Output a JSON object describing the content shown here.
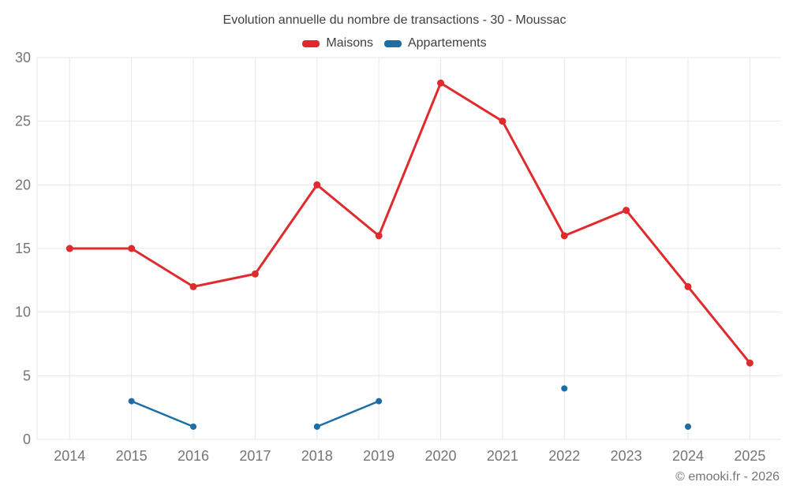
{
  "chart_data": {
    "type": "line",
    "title": "Evolution annuelle du nombre de transactions - 30 - Moussac",
    "categories": [
      "2014",
      "2015",
      "2016",
      "2017",
      "2018",
      "2019",
      "2020",
      "2021",
      "2022",
      "2023",
      "2024",
      "2025"
    ],
    "series": [
      {
        "name": "Maisons",
        "color": "#e02a2d",
        "values": [
          15,
          15,
          12,
          13,
          20,
          16,
          28,
          25,
          16,
          18,
          12,
          6
        ]
      },
      {
        "name": "Appartements",
        "color": "#1c6ea4",
        "values": [
          null,
          3,
          1,
          null,
          1,
          3,
          null,
          null,
          4,
          null,
          1,
          null
        ]
      }
    ],
    "xlabel": "",
    "ylabel": "",
    "ylim": [
      0,
      30
    ],
    "yticks": [
      0,
      5,
      10,
      15,
      20,
      25,
      30
    ],
    "grid": true,
    "legend_position": "top",
    "colors": {
      "grid": "#e7e7e7",
      "tick_text": "#757575",
      "title_text": "#3f3f3f"
    }
  },
  "footer": {
    "copyright": "© emooki.fr - 2026"
  }
}
